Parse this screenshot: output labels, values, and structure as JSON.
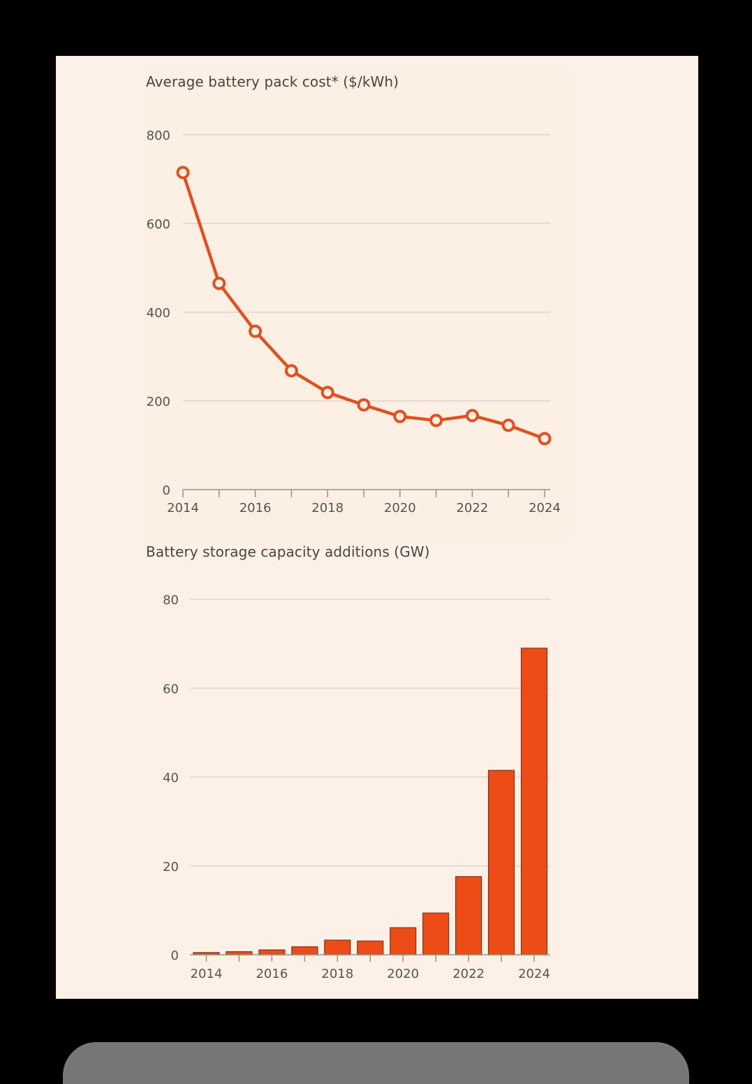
{
  "colors": {
    "background": "#fdf0e6",
    "line": "#e0501f",
    "bar_fill": "#ee4c16",
    "bar_outline": "#7a3320",
    "grid": "#d9cfc7",
    "axis": "#9a918a",
    "text": "#4a4440"
  },
  "chart_data": [
    {
      "type": "line",
      "title": "Average battery pack cost* ($/kWh)",
      "xlabel": "",
      "ylabel": "",
      "x": [
        2014,
        2015,
        2016,
        2017,
        2018,
        2019,
        2020,
        2021,
        2022,
        2023,
        2024
      ],
      "series": [
        {
          "name": "Average battery pack cost ($/kWh)",
          "values": [
            715,
            465,
            357,
            268,
            219,
            191,
            165,
            156,
            167,
            145,
            115
          ]
        }
      ],
      "xticks": [
        "2014",
        "2016",
        "2018",
        "2020",
        "2022",
        "2024"
      ],
      "yticks": [
        "0",
        "200",
        "400",
        "600",
        "800"
      ],
      "ylim": [
        0,
        800
      ],
      "xlim": [
        2014,
        2024
      ],
      "grid": true,
      "markers": "hollow-circle"
    },
    {
      "type": "bar",
      "title": "Battery storage capacity additions (GW)",
      "xlabel": "",
      "ylabel": "",
      "categories": [
        "2014",
        "2015",
        "2016",
        "2017",
        "2018",
        "2019",
        "2020",
        "2021",
        "2022",
        "2023",
        "2024"
      ],
      "values": [
        0.5,
        0.7,
        1.1,
        1.8,
        3.3,
        3.1,
        6.1,
        9.4,
        17.6,
        41.5,
        69
      ],
      "xticks": [
        "2014",
        "2016",
        "2018",
        "2020",
        "2022",
        "2024"
      ],
      "yticks": [
        "0",
        "20",
        "40",
        "60",
        "80"
      ],
      "ylim": [
        0,
        80
      ],
      "grid": true
    }
  ]
}
